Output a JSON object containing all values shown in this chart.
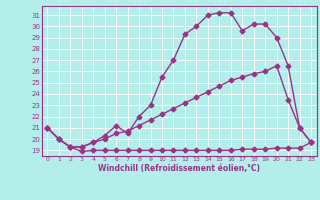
{
  "bg_color": "#b3eeea",
  "line_color": "#993388",
  "grid_color": "#ffffff",
  "xlabel": "Windchill (Refroidissement éolien,°C)",
  "ylabel_ticks": [
    19,
    20,
    21,
    22,
    23,
    24,
    25,
    26,
    27,
    28,
    29,
    30,
    31
  ],
  "xlim": [
    -0.5,
    23.5
  ],
  "ylim": [
    18.5,
    31.8
  ],
  "xticks": [
    0,
    1,
    2,
    3,
    4,
    5,
    6,
    7,
    8,
    9,
    10,
    11,
    12,
    13,
    14,
    15,
    16,
    17,
    18,
    19,
    20,
    21,
    22,
    23
  ],
  "series1_x": [
    0,
    1,
    2,
    3,
    4,
    5,
    6,
    7,
    8,
    9,
    10,
    11,
    12,
    13,
    14,
    15,
    16,
    17,
    18,
    19,
    20,
    21,
    22,
    23
  ],
  "series1_y": [
    21.0,
    20.0,
    19.3,
    18.9,
    19.0,
    19.0,
    19.0,
    19.0,
    19.0,
    19.0,
    19.0,
    19.0,
    19.0,
    19.0,
    19.0,
    19.0,
    19.0,
    19.1,
    19.1,
    19.1,
    19.2,
    19.2,
    19.2,
    19.7
  ],
  "series2_x": [
    0,
    1,
    2,
    3,
    4,
    5,
    6,
    7,
    8,
    9,
    10,
    11,
    12,
    13,
    14,
    15,
    16,
    17,
    18,
    19,
    20,
    21,
    22,
    23
  ],
  "series2_y": [
    21.0,
    20.0,
    19.3,
    19.3,
    19.7,
    20.0,
    20.5,
    20.7,
    21.2,
    21.7,
    22.2,
    22.7,
    23.2,
    23.7,
    24.2,
    24.7,
    25.2,
    25.5,
    25.8,
    26.0,
    26.5,
    23.5,
    21.0,
    19.7
  ],
  "series3_x": [
    0,
    1,
    2,
    3,
    4,
    5,
    6,
    7,
    8,
    9,
    10,
    11,
    12,
    13,
    14,
    15,
    16,
    17,
    18,
    19,
    20,
    21,
    22,
    23
  ],
  "series3_y": [
    21.0,
    20.0,
    19.3,
    19.3,
    19.7,
    20.3,
    21.2,
    20.5,
    22.0,
    23.0,
    25.5,
    27.0,
    29.3,
    30.0,
    31.0,
    31.2,
    31.2,
    29.6,
    30.2,
    30.2,
    29.0,
    26.5,
    21.0,
    19.7
  ],
  "marker": "D",
  "markersize": 2.5,
  "linewidth": 1.0
}
